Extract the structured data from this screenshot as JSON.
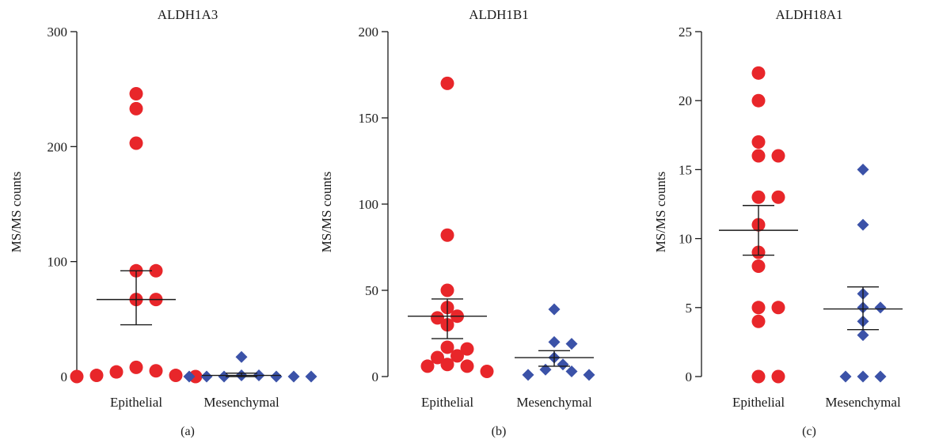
{
  "colors": {
    "epithelial": "#e8262a",
    "mesenchymal": "#3b52a8",
    "axis": "#1a1a1a"
  },
  "chart_data": [
    {
      "type": "scatter",
      "title": "ALDH1A3",
      "panel_label": "(a)",
      "ylabel": "MS/MS counts",
      "categories": [
        "Epithelial",
        "Mesenchymal"
      ],
      "ylim": [
        0,
        300
      ],
      "yticks": [
        0,
        100,
        200,
        300
      ],
      "series": [
        {
          "name": "Epithelial",
          "marker": "circle",
          "values": [
            246,
            233,
            203,
            92,
            92,
            67,
            67,
            8,
            5,
            4,
            1,
            1,
            0,
            0
          ],
          "mean": 67,
          "sem_low": 45,
          "sem_high": 92
        },
        {
          "name": "Mesenchymal",
          "marker": "diamond",
          "values": [
            17,
            1,
            1,
            0,
            0,
            0,
            0,
            0,
            0
          ],
          "mean": 1,
          "sem_low": 0,
          "sem_high": 3
        }
      ]
    },
    {
      "type": "scatter",
      "title": "ALDH1B1",
      "panel_label": "(b)",
      "ylabel": "MS/MS counts",
      "categories": [
        "Epithelial",
        "Mesenchymal"
      ],
      "ylim": [
        0,
        200
      ],
      "yticks": [
        0,
        50,
        100,
        150,
        200
      ],
      "series": [
        {
          "name": "Epithelial",
          "marker": "circle",
          "values": [
            170,
            82,
            50,
            40,
            35,
            34,
            30,
            17,
            16,
            12,
            11,
            7,
            6,
            6,
            3
          ],
          "mean": 35,
          "sem_low": 22,
          "sem_high": 45
        },
        {
          "name": "Mesenchymal",
          "marker": "diamond",
          "values": [
            39,
            20,
            19,
            11,
            7,
            4,
            3,
            1,
            1
          ],
          "mean": 11,
          "sem_low": 6,
          "sem_high": 15
        }
      ]
    },
    {
      "type": "scatter",
      "title": "ALDH18A1",
      "panel_label": "(c)",
      "ylabel": "MS/MS counts",
      "categories": [
        "Epithelial",
        "Mesenchymal"
      ],
      "ylim": [
        0,
        25
      ],
      "yticks": [
        0,
        5,
        10,
        15,
        20,
        25
      ],
      "series": [
        {
          "name": "Epithelial",
          "marker": "circle",
          "values": [
            22,
            20,
            17,
            16,
            16,
            13,
            13,
            11,
            9,
            8,
            5,
            5,
            4,
            0,
            0
          ],
          "mean": 10.6,
          "sem_low": 8.8,
          "sem_high": 12.4
        },
        {
          "name": "Mesenchymal",
          "marker": "diamond",
          "values": [
            15,
            11,
            6,
            5,
            5,
            4,
            3,
            0,
            0,
            0
          ],
          "mean": 4.9,
          "sem_low": 3.4,
          "sem_high": 6.5
        }
      ]
    }
  ]
}
